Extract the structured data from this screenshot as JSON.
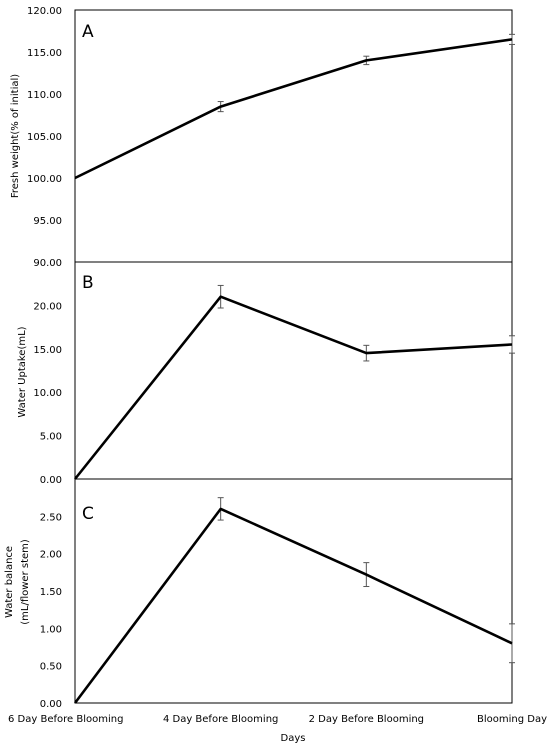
{
  "chart_data": {
    "type": "line",
    "categories": [
      "6 Day Before Blooming",
      "4 Day Before Blooming",
      "2 Day Before Blooming",
      "Blooming Day"
    ],
    "xlabel": "Days",
    "panels": [
      {
        "letter": "A",
        "ylabel": "Fresh weight(% of initial)",
        "ylim": [
          90,
          120
        ],
        "yticks": [
          "90.00",
          "95.00",
          "100.00",
          "105.00",
          "110.00",
          "115.00",
          "120.00"
        ],
        "values": [
          100.0,
          108.5,
          114.0,
          116.5
        ],
        "errors": [
          0.0,
          0.6,
          0.5,
          0.6
        ]
      },
      {
        "letter": "B",
        "ylabel": "Water Uptake(mL)",
        "ylim": [
          0,
          25
        ],
        "yticks": [
          "0.00",
          "5.00",
          "10.00",
          "15.00",
          "20.00"
        ],
        "values": [
          0.0,
          21.0,
          14.5,
          15.5
        ],
        "errors": [
          0.0,
          1.3,
          0.9,
          1.0
        ]
      },
      {
        "letter": "C",
        "ylabel": [
          "Water balance",
          "(mL/flower stem)"
        ],
        "ylim": [
          0,
          3
        ],
        "yticks": [
          "0.00",
          "0.50",
          "1.00",
          "1.50",
          "2.00",
          "2.50"
        ],
        "values": [
          0.0,
          2.6,
          1.72,
          0.8
        ],
        "errors": [
          0.0,
          0.15,
          0.16,
          0.26
        ]
      }
    ]
  }
}
